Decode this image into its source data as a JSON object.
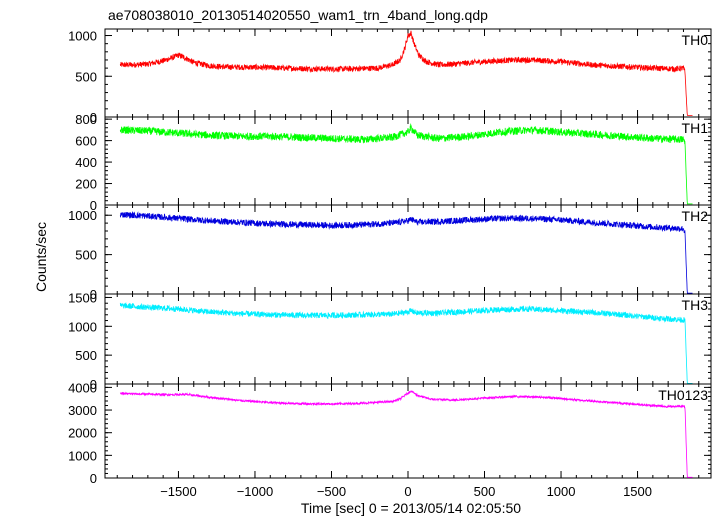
{
  "chart_data": {
    "type": "line",
    "title": "ae708038010_20130514020550_wam1_trn_4band_long.qdp",
    "xlabel": "Time [sec] 0 = 2013/05/14 02:05:50",
    "ylabel": "Counts/sec",
    "xlim": [
      -1980,
      1980
    ],
    "x_ticks": [
      -1500,
      -1000,
      -500,
      0,
      500,
      1000,
      1500
    ],
    "x_tick_labels": [
      "−1500",
      "−1000",
      "−500",
      "0",
      "500",
      "1000",
      "1500"
    ],
    "grid": false,
    "panels": [
      {
        "name": "TH0",
        "color": "#ff0000",
        "ylim": [
          0,
          1080
        ],
        "y_ticks": [
          0,
          500,
          1000
        ],
        "y_tick_labels": [
          "0",
          "500",
          "1000"
        ],
        "noise": 35,
        "x": [
          -1880,
          -1800,
          -1700,
          -1600,
          -1550,
          -1500,
          -1450,
          -1400,
          -1300,
          -1200,
          -1000,
          -800,
          -600,
          -400,
          -200,
          -100,
          -50,
          -20,
          0,
          20,
          40,
          70,
          120,
          200,
          300,
          500,
          700,
          800,
          1000,
          1200,
          1400,
          1600,
          1750,
          1800,
          1810,
          1825,
          1860
        ],
        "y": [
          640,
          640,
          650,
          690,
          720,
          760,
          720,
          670,
          630,
          615,
          610,
          600,
          590,
          590,
          600,
          640,
          700,
          850,
          1000,
          1030,
          900,
          760,
          680,
          640,
          650,
          680,
          700,
          700,
          680,
          640,
          620,
          600,
          590,
          600,
          550,
          20,
          20
        ]
      },
      {
        "name": "TH1",
        "color": "#00ff00",
        "ylim": [
          0,
          820
        ],
        "y_ticks": [
          0,
          200,
          400,
          600,
          800
        ],
        "y_tick_labels": [
          "0",
          "200",
          "400",
          "600",
          "800"
        ],
        "noise": 35,
        "x": [
          -1880,
          -1700,
          -1500,
          -1300,
          -1100,
          -900,
          -700,
          -500,
          -300,
          -100,
          0,
          20,
          60,
          200,
          400,
          600,
          800,
          1000,
          1200,
          1400,
          1600,
          1800,
          1810,
          1825,
          1860
        ],
        "y": [
          700,
          690,
          670,
          650,
          640,
          640,
          630,
          620,
          610,
          630,
          680,
          720,
          650,
          620,
          640,
          680,
          700,
          680,
          660,
          640,
          620,
          610,
          580,
          10,
          10
        ]
      },
      {
        "name": "TH2",
        "color": "#0000dd",
        "ylim": [
          0,
          1130
        ],
        "y_ticks": [
          0,
          500,
          1000
        ],
        "y_tick_labels": [
          "0",
          "500",
          "1000"
        ],
        "noise": 40,
        "x": [
          -1880,
          -1700,
          -1500,
          -1300,
          -1100,
          -900,
          -700,
          -500,
          -300,
          -100,
          0,
          20,
          60,
          200,
          400,
          600,
          800,
          1000,
          1200,
          1400,
          1600,
          1800,
          1810,
          1825,
          1860
        ],
        "y": [
          1010,
          990,
          960,
          930,
          910,
          890,
          880,
          870,
          880,
          900,
          930,
          950,
          910,
          920,
          940,
          960,
          960,
          940,
          910,
          880,
          850,
          830,
          780,
          10,
          10
        ]
      },
      {
        "name": "TH3",
        "color": "#00eeff",
        "ylim": [
          0,
          1560
        ],
        "y_ticks": [
          0,
          500,
          1000,
          1500
        ],
        "y_tick_labels": [
          "0",
          "500",
          "1000",
          "1500"
        ],
        "noise": 50,
        "x": [
          -1880,
          -1700,
          -1500,
          -1300,
          -1100,
          -900,
          -700,
          -500,
          -300,
          -100,
          0,
          20,
          60,
          200,
          400,
          600,
          800,
          1000,
          1200,
          1400,
          1600,
          1800,
          1810,
          1825,
          1860
        ],
        "y": [
          1360,
          1330,
          1300,
          1250,
          1220,
          1200,
          1190,
          1190,
          1200,
          1210,
          1250,
          1270,
          1230,
          1230,
          1260,
          1290,
          1300,
          1270,
          1240,
          1200,
          1150,
          1110,
          1100,
          10,
          10
        ]
      },
      {
        "name": "TH0123",
        "color": "#ff00ff",
        "ylim": [
          0,
          4150
        ],
        "y_ticks": [
          0,
          1000,
          2000,
          3000,
          4000
        ],
        "y_tick_labels": [
          "0",
          "1000",
          "2000",
          "3000",
          "4000"
        ],
        "noise": 45,
        "x": [
          -1880,
          -1700,
          -1550,
          -1450,
          -1300,
          -1100,
          -900,
          -700,
          -500,
          -300,
          -100,
          -50,
          0,
          20,
          60,
          150,
          300,
          500,
          700,
          900,
          1100,
          1300,
          1500,
          1700,
          1800,
          1810,
          1825,
          1860
        ],
        "y": [
          3730,
          3700,
          3680,
          3690,
          3570,
          3420,
          3330,
          3280,
          3270,
          3300,
          3380,
          3500,
          3750,
          3850,
          3650,
          3480,
          3440,
          3530,
          3600,
          3560,
          3450,
          3350,
          3250,
          3150,
          3180,
          3150,
          30,
          30
        ]
      }
    ]
  }
}
